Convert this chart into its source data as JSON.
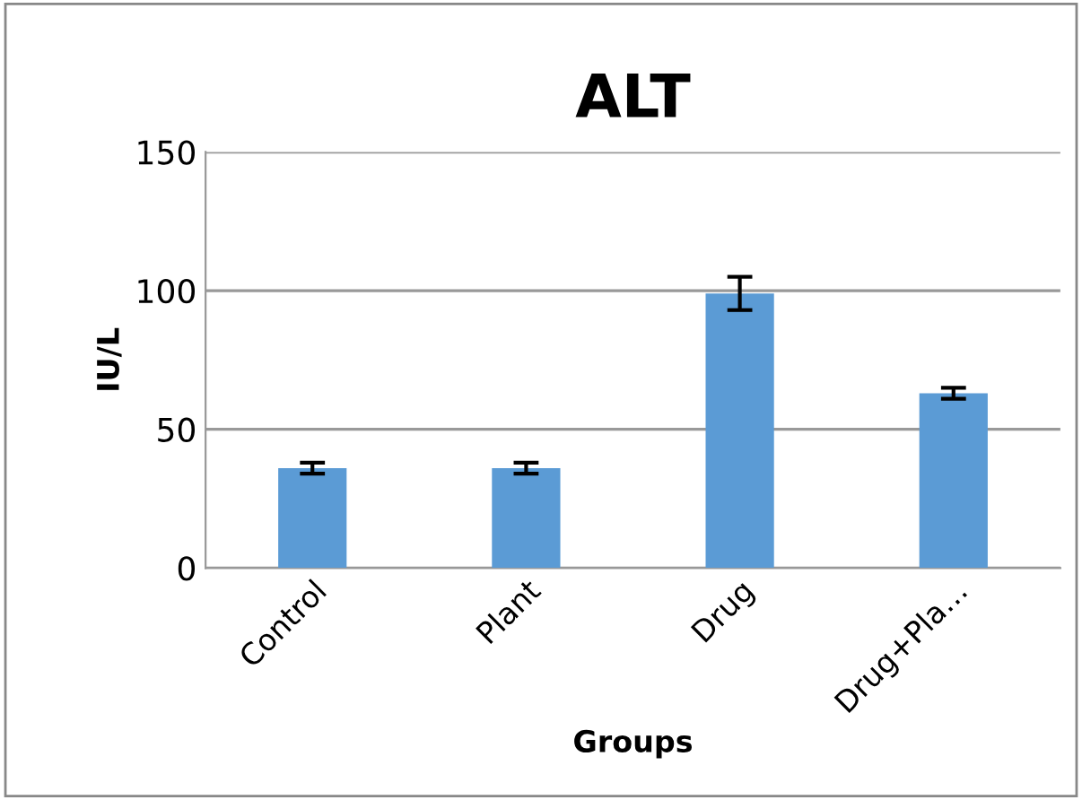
{
  "chart_data": {
    "type": "bar",
    "title": "ALT",
    "xlabel": "Groups",
    "ylabel": "IU/L",
    "categories": [
      "Control",
      "Plant",
      "Drug",
      "Drug+Pla…"
    ],
    "values": [
      36,
      36,
      99,
      63
    ],
    "errors": [
      2,
      2,
      6,
      2
    ],
    "color": "#5b9bd5",
    "ylim": [
      0,
      150
    ],
    "yticks": [
      0,
      50,
      100,
      150
    ],
    "grid": "y"
  }
}
